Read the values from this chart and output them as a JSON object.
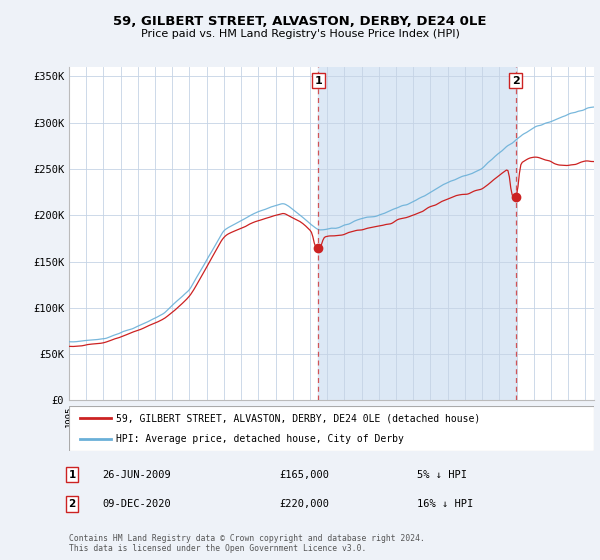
{
  "title1": "59, GILBERT STREET, ALVASTON, DERBY, DE24 0LE",
  "title2": "Price paid vs. HM Land Registry's House Price Index (HPI)",
  "ylabel_ticks": [
    "£0",
    "£50K",
    "£100K",
    "£150K",
    "£200K",
    "£250K",
    "£300K",
    "£350K"
  ],
  "ytick_values": [
    0,
    50000,
    100000,
    150000,
    200000,
    250000,
    300000,
    350000
  ],
  "ylim": [
    0,
    360000
  ],
  "xlim_start": 1995.0,
  "xlim_end": 2025.5,
  "hpi_color": "#6ab0d8",
  "price_color": "#cc2222",
  "bg_color": "#eef2f8",
  "plot_bg": "#ffffff",
  "shaded_region_color": "#dce8f5",
  "grid_color": "#c5d3e5",
  "marker1_date": 2009.48,
  "marker1_price": 165000,
  "marker2_date": 2020.94,
  "marker2_price": 220000,
  "legend_label_red": "59, GILBERT STREET, ALVASTON, DERBY, DE24 0LE (detached house)",
  "legend_label_blue": "HPI: Average price, detached house, City of Derby",
  "note1_num": "1",
  "note1_date": "26-JUN-2009",
  "note1_price": "£165,000",
  "note1_pct": "5% ↓ HPI",
  "note2_num": "2",
  "note2_date": "09-DEC-2020",
  "note2_price": "£220,000",
  "note2_pct": "16% ↓ HPI",
  "footer": "Contains HM Land Registry data © Crown copyright and database right 2024.\nThis data is licensed under the Open Government Licence v3.0."
}
